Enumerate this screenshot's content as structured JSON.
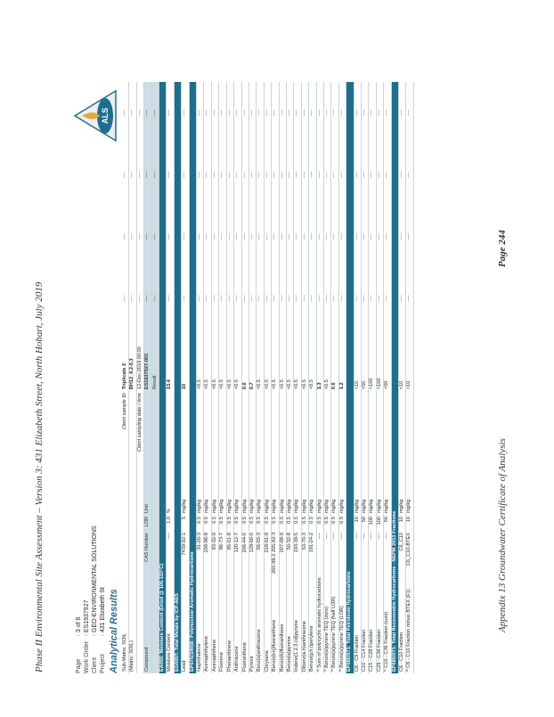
{
  "header": "Phase II Environmental Site Assessment – Version 3: 431 Elizabeth Street, North Hobart, July 2019",
  "footer": "Appendix 13 Groundwater Certificate of Analysis",
  "page_label": "Page 244",
  "meta": {
    "page_label": "Page",
    "page_value": ": 3 of 6",
    "work_order_label": "Work Order",
    "work_order_value": ": ES1937927",
    "client_label": "Client",
    "client_value": ": GEO-ENVIRONMENTAL SOLUTIONS",
    "project_label": "Project",
    "project_value": ": 431 Elizabeth St"
  },
  "title": "Analytical Results",
  "logo_text": "ALS",
  "top": {
    "submatrix": "Sub-Matrix: SOIL",
    "matrix": "(Matrix: SOIL)",
    "client_sample_id_label": "Client sample ID",
    "sample_id": "Triplicate 2",
    "sample_name": "BH12_0.2-0.3",
    "sampling_label": "Client sampling date / time",
    "sampling_value": "12-Dec-2019 00:00",
    "compound_label": "Compound",
    "cas_label": "CAS Number",
    "lor_label": "LOR",
    "unit_label": "Unit",
    "lab_id": "ES1937927-001",
    "result_label": "Result"
  },
  "rows": [
    {
      "type": "sec",
      "c1": "EA055: Moisture Content (Dried @ 105-110°C)"
    },
    {
      "c1": "Moisture Content",
      "c2": "----",
      "c3": "1.0",
      "c4": "%",
      "c5": "13.4",
      "bold": true
    },
    {
      "type": "sec",
      "c1": "EG005T: Total Metals by ICP-AES"
    },
    {
      "c1": "Lead",
      "c2": "7439-92-1",
      "c3": "5",
      "c4": "mg/kg",
      "c5": "10",
      "bold": true
    },
    {
      "type": "sec",
      "c1": "EP075(SIM)B: Polynuclear Aromatic Hydrocarbons"
    },
    {
      "c1": "Naphthalene",
      "c2": "91-20-3",
      "c3": "0.5",
      "c4": "mg/kg",
      "c5": "<0.5"
    },
    {
      "c1": "Acenaphthylene",
      "c2": "208-96-8",
      "c3": "0.5",
      "c4": "mg/kg",
      "c5": "<0.5"
    },
    {
      "c1": "Acenaphthene",
      "c2": "83-32-9",
      "c3": "0.5",
      "c4": "mg/kg",
      "c5": "<0.5"
    },
    {
      "c1": "Fluorene",
      "c2": "86-73-7",
      "c3": "0.5",
      "c4": "mg/kg",
      "c5": "<0.5"
    },
    {
      "c1": "Phenanthrene",
      "c2": "85-01-8",
      "c3": "0.5",
      "c4": "mg/kg",
      "c5": "<0.5"
    },
    {
      "c1": "Anthracene",
      "c2": "120-12-7",
      "c3": "0.5",
      "c4": "mg/kg",
      "c5": "<0.5"
    },
    {
      "c1": "Fluoranthene",
      "c2": "206-44-0",
      "c3": "0.5",
      "c4": "mg/kg",
      "c5": "0.6",
      "bold": true
    },
    {
      "c1": "Pyrene",
      "c2": "129-00-0",
      "c3": "0.5",
      "c4": "mg/kg",
      "c5": "0.7",
      "bold": true
    },
    {
      "c1": "Benz(a)anthracene",
      "c2": "56-55-3",
      "c3": "0.5",
      "c4": "mg/kg",
      "c5": "<0.5"
    },
    {
      "c1": "Chrysene",
      "c2": "218-01-9",
      "c3": "0.5",
      "c4": "mg/kg",
      "c5": "<0.5"
    },
    {
      "c1": "Benzo(b+j)fluoranthene",
      "c2": "205-99-2 205-82-3",
      "c3": "0.5",
      "c4": "mg/kg",
      "c5": "<0.5"
    },
    {
      "c1": "Benzo(k)fluoranthene",
      "c2": "207-08-9",
      "c3": "0.5",
      "c4": "mg/kg",
      "c5": "<0.5"
    },
    {
      "c1": "Benzo(a)pyrene",
      "c2": "50-32-8",
      "c3": "0.5",
      "c4": "mg/kg",
      "c5": "<0.5"
    },
    {
      "c1": "Indeno(1.2.3.cd)pyrene",
      "c2": "193-39-5",
      "c3": "0.5",
      "c4": "mg/kg",
      "c5": "<0.5"
    },
    {
      "c1": "Dibenz(a.h)anthracene",
      "c2": "53-70-3",
      "c3": "0.5",
      "c4": "mg/kg",
      "c5": "<0.5"
    },
    {
      "c1": "Benzo(g.h.i)perylene",
      "c2": "191-24-2",
      "c3": "0.5",
      "c4": "mg/kg",
      "c5": "<0.5"
    },
    {
      "c1": "^ Sum of polycyclic aromatic hydrocarbons",
      "c2": "----",
      "c3": "0.5",
      "c4": "mg/kg",
      "c5": "1.3",
      "bold": true
    },
    {
      "c1": "^ Benzo(a)pyrene TEQ (zero)",
      "c2": "----",
      "c3": "0.5",
      "c4": "mg/kg",
      "c5": "<0.5"
    },
    {
      "c1": "^ Benzo(a)pyrene TEQ (half LOR)",
      "c2": "----",
      "c3": "0.5",
      "c4": "mg/kg",
      "c5": "0.6",
      "bold": true
    },
    {
      "c1": "^ Benzo(a)pyrene TEQ (LOR)",
      "c2": "----",
      "c3": "0.5",
      "c4": "mg/kg",
      "c5": "1.2",
      "bold": true
    },
    {
      "type": "sec",
      "c1": "EP080/071: Total Petroleum Hydrocarbons"
    },
    {
      "c1": "C6 - C9 Fraction",
      "c2": "----",
      "c3": "10",
      "c4": "mg/kg",
      "c5": "<10"
    },
    {
      "c1": "C10 - C14 Fraction",
      "c2": "----",
      "c3": "50",
      "c4": "mg/kg",
      "c5": "<50"
    },
    {
      "c1": "C15 - C28 Fraction",
      "c2": "----",
      "c3": "100",
      "c4": "mg/kg",
      "c5": "<100"
    },
    {
      "c1": "C29 - C36 Fraction",
      "c2": "----",
      "c3": "100",
      "c4": "mg/kg",
      "c5": "<100"
    },
    {
      "c1": "^ C10 - C36 Fraction (sum)",
      "c2": "----",
      "c3": "50",
      "c4": "mg/kg",
      "c5": "<50"
    },
    {
      "type": "sec",
      "c1": "EP080/071: Total Recoverable Hydrocarbons - NEPM 2013 Fractions"
    },
    {
      "c1": "C6 - C10 Fraction",
      "c2": "C6_C10",
      "c3": "10",
      "c4": "mg/kg",
      "c5": "<10"
    },
    {
      "c1": "^ C6 - C10 Fraction minus BTEX (F1)",
      "c2": "C6_C10-BTEX",
      "c3": "10",
      "c4": "mg/kg",
      "c5": "<10"
    }
  ],
  "dash": "----"
}
